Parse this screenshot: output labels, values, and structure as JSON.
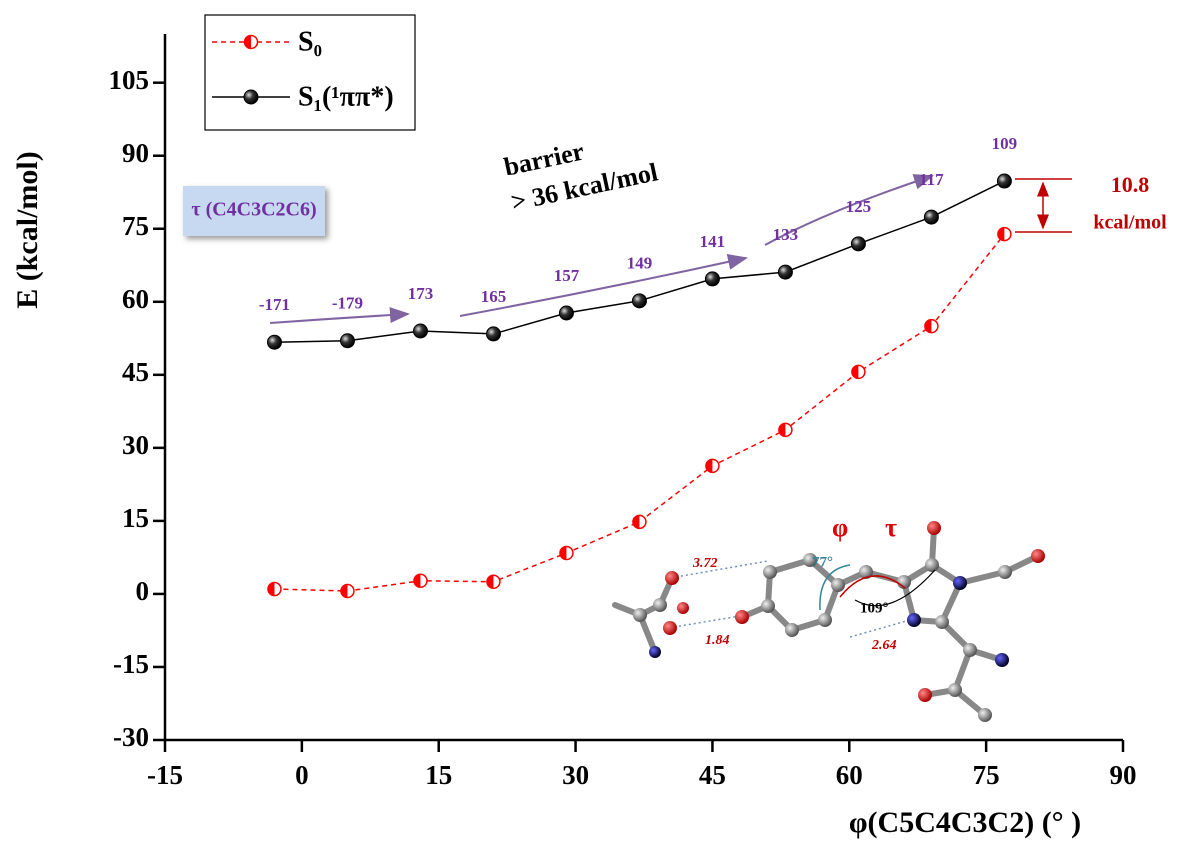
{
  "chart_data": {
    "type": "line",
    "xlabel": "φ(C5C4C3C2) (°  )",
    "ylabel": "E (kcal/mol)",
    "x": [
      -3,
      5,
      13,
      21,
      29,
      37,
      45,
      53,
      61,
      69,
      77
    ],
    "series": [
      {
        "name": "S₀",
        "color": "#ff0000",
        "values": [
          1.0,
          0.6,
          2.7,
          2.5,
          8.4,
          14.8,
          26.3,
          33.7,
          45.6,
          55.0,
          73.9
        ]
      },
      {
        "name": "S₁(¹ππ*)",
        "color": "#000000",
        "values": [
          51.7,
          52.0,
          54.0,
          53.4,
          57.7,
          60.2,
          64.7,
          66.1,
          71.9,
          77.4,
          84.8
        ]
      }
    ],
    "tau_labels": [
      -171,
      -179,
      173,
      165,
      157,
      149,
      141,
      133,
      125,
      117,
      109
    ],
    "xlim": [
      -15,
      90
    ],
    "xticks": [
      -15,
      0,
      15,
      30,
      45,
      60,
      75,
      90
    ],
    "ylim": [
      -30,
      115
    ],
    "yticks": [
      -30,
      -15,
      0,
      15,
      30,
      45,
      60,
      75,
      90,
      105
    ],
    "legend": "top-left",
    "annotations": {
      "tau_box": "τ (C4C3C2C6)",
      "barrier": "barrier",
      "barrier_value": "> 36 kcal/mol",
      "gap_value": "10.8",
      "gap_unit": "kcal/mol",
      "phi": "φ",
      "tau": "τ",
      "angle_1": "77°",
      "angle_2": "109°",
      "distance_1": "3.72",
      "distance_2": "1.84",
      "distance_3": "2.64"
    }
  }
}
